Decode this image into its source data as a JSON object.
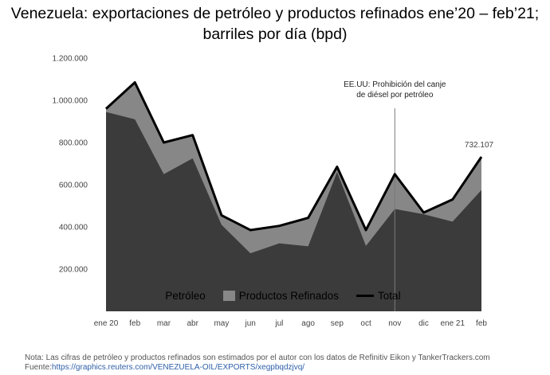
{
  "title_line1": "Venezuela: exportaciones de petróleo y productos refinados ene’20 – feb’21;",
  "title_line2": "barriles por día (bpd)",
  "annotation_line1": "EE.UU: Prohibición del canje",
  "annotation_line2": "de diésel por petróleo",
  "last_value_label": "732.107",
  "legend": {
    "crude": "Petróleo",
    "refined": "Productos Refinados",
    "total": "Total"
  },
  "note": "Nota: Las cifras de petróleo y productos refinados son estimados por el autor con los datos de Refinitiv Eikon y TankerTrackers.com",
  "source_prefix": "Fuente:",
  "source_link": "https://graphics.reuters.com/VENEZUELA-OIL/EXPORTS/xegpbqdzjvq/",
  "colors": {
    "crude": "#3b3b3b",
    "refined": "#878787",
    "total": "#000000",
    "annotation_line": "#7a7a7a"
  },
  "chart_data": {
    "type": "area",
    "categories": [
      "ene 20",
      "feb",
      "mar",
      "abr",
      "may",
      "jun",
      "jul",
      "ago",
      "sep",
      "oct",
      "nov",
      "dic",
      "ene 21",
      "feb"
    ],
    "series": [
      {
        "name": "Petróleo",
        "values": [
          945000,
          910000,
          650000,
          725000,
          410000,
          275000,
          322000,
          308000,
          660000,
          310000,
          485000,
          460000,
          425000,
          575000
        ]
      },
      {
        "name": "Productos Refinados",
        "values": [
          15000,
          175000,
          150000,
          110000,
          45000,
          110000,
          83000,
          135000,
          25000,
          75000,
          165000,
          8000,
          105000,
          157107
        ]
      },
      {
        "name": "Total",
        "values": [
          960000,
          1085000,
          800000,
          835000,
          455000,
          385000,
          405000,
          443000,
          685000,
          385000,
          650000,
          468000,
          530000,
          732107
        ]
      }
    ],
    "ylim": [
      0,
      1200000
    ],
    "yticks": [
      "200.000",
      "400.000",
      "600.000",
      "800.000",
      "1.000.000",
      "1.200.000"
    ],
    "ytick_values": [
      200000,
      400000,
      600000,
      800000,
      1000000,
      1200000
    ],
    "stacked": true,
    "annotation_category": "nov",
    "legend_position": "bottom",
    "grid": false
  }
}
